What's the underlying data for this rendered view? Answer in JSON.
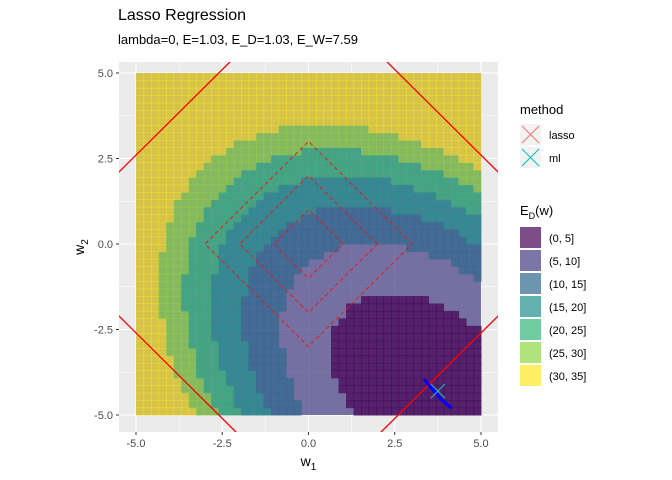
{
  "chart_data": {
    "type": "heatmap",
    "title": "Lasso Regression",
    "subtitle": "lambda=0, E=1.03, E_D=1.03, E_W=7.59",
    "xlabel": "w",
    "xlabel_sub": "1",
    "ylabel": "w",
    "ylabel_sub": "2",
    "xlim": [
      -5,
      5
    ],
    "ylim": [
      -5,
      5
    ],
    "x_ticks": [
      "-5.0",
      "-2.5",
      "0.0",
      "2.5",
      "5.0"
    ],
    "y_ticks": [
      "5.0",
      "2.5",
      "0.0",
      "-2.5",
      "-5.0"
    ],
    "x_tick_values": [
      -5,
      -2.5,
      0,
      2.5,
      5
    ],
    "y_tick_values": [
      5,
      2.5,
      0,
      -2.5,
      -5
    ],
    "grid": true,
    "legend_position": "right",
    "fill_legend": {
      "title": "E",
      "title_sub": "D",
      "title_suffix": "(w)",
      "bins": [
        {
          "label": "(0, 5]",
          "color": "#440154"
        },
        {
          "label": "(5, 10]",
          "color": "#443A83"
        },
        {
          "label": "(10, 15]",
          "color": "#31688E"
        },
        {
          "label": "(15, 20]",
          "color": "#21908C"
        },
        {
          "label": "(20, 25]",
          "color": "#35B779"
        },
        {
          "label": "(25, 30]",
          "color": "#8FD744"
        },
        {
          "label": "(30, 35]",
          "color": "#FDE725"
        }
      ],
      "fill_alpha": 0.7
    },
    "method_legend": {
      "title": "method",
      "items": [
        {
          "label": "lasso",
          "color": "#F8766D"
        },
        {
          "label": "ml",
          "color": "#00BFC4"
        }
      ]
    },
    "contour_bounds": [
      5,
      10,
      15,
      20,
      25,
      30
    ],
    "contour_center": [
      3.6,
      -4.3
    ],
    "contour_direction": [
      0.69,
      0.72
    ],
    "contour_scale": 6.7,
    "band_offsets": [
      [
        -0.9,
        0.45
      ],
      [
        -2.0,
        -0.8,
        1.1,
        3.2
      ],
      [
        -3.3,
        -1.6,
        4.1
      ],
      [
        -4.6,
        -2.4,
        5.0
      ],
      [
        -3.3,
        6.0
      ],
      [
        -4.0
      ]
    ],
    "penalty_diamonds": {
      "levels": [
        1,
        2,
        3
      ],
      "color": "#E41A1C",
      "dash": true
    },
    "penalty_outer_level": 7.6,
    "penalty_outer_color": "#FF0000",
    "path_blue": {
      "color": "#0000FF",
      "points": [
        [
          3.35,
          -3.95
        ],
        [
          3.6,
          -4.25
        ],
        [
          3.85,
          -4.55
        ],
        [
          4.15,
          -4.8
        ]
      ]
    },
    "estimates": [
      {
        "method": "lasso",
        "w1": 3.75,
        "w2": -4.3
      },
      {
        "method": "ml",
        "w1": 3.75,
        "w2": -4.3
      }
    ]
  }
}
